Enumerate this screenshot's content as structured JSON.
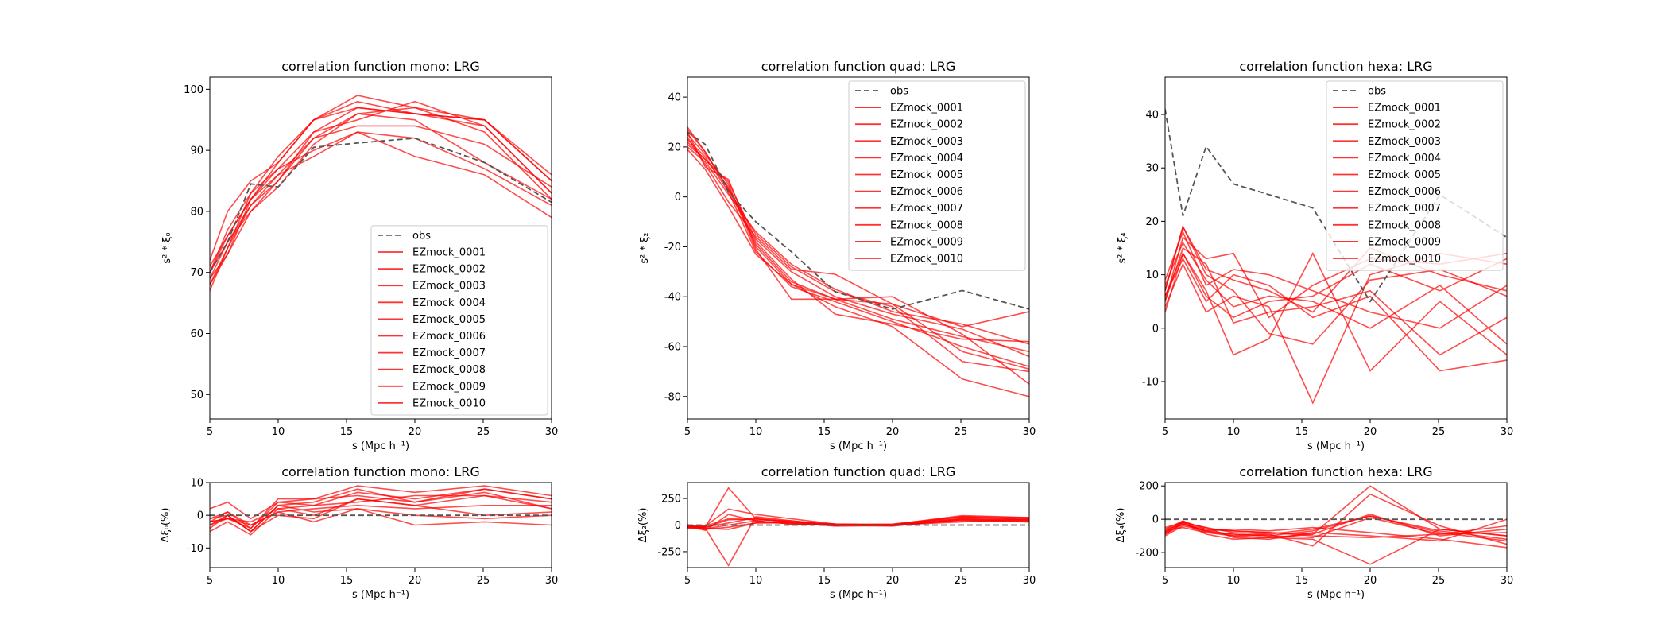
{
  "colors": {
    "obs": "#555555",
    "mock": "#ff0000",
    "legend_border": "#cccccc",
    "axes": "#000000"
  },
  "legend": {
    "obs_label": "obs",
    "mock_labels": [
      "EZmock_0001",
      "EZmock_0002",
      "EZmock_0003",
      "EZmock_0004",
      "EZmock_0005",
      "EZmock_0006",
      "EZmock_0007",
      "EZmock_0008",
      "EZmock_0009",
      "EZmock_0010"
    ]
  },
  "chart_data": [
    {
      "type": "line",
      "title": "correlation function mono: LRG",
      "xlabel": "s (Mpc h⁻¹)",
      "ylabel": "s² * ξ₀",
      "xlim": [
        5,
        30
      ],
      "ylim": [
        46,
        102
      ],
      "xticks": [
        5,
        10,
        15,
        20,
        25,
        30
      ],
      "yticks": [
        50,
        60,
        70,
        80,
        90,
        100
      ],
      "legend_position": "lower-right",
      "x": [
        5,
        6.3,
        8,
        10,
        12.6,
        15.8,
        20,
        25.1,
        30
      ],
      "obs": [
        70,
        75,
        84.5,
        84,
        90.5,
        91.2,
        92,
        88,
        81.5
      ],
      "mocks": [
        [
          70,
          77,
          83,
          87,
          93,
          97,
          96,
          95,
          85
        ],
        [
          68,
          73,
          82,
          88,
          95,
          98,
          96,
          94,
          83
        ],
        [
          72,
          80,
          85,
          88,
          95,
          99,
          97,
          93,
          82
        ],
        [
          67,
          74,
          81,
          86,
          92,
          96,
          97,
          95,
          86
        ],
        [
          69,
          75,
          80,
          85,
          92,
          94,
          94,
          91,
          84
        ],
        [
          71,
          76,
          82,
          87,
          90,
          93,
          89,
          86,
          79
        ],
        [
          68,
          74,
          83,
          89,
          95,
          97,
          96,
          95,
          85
        ],
        [
          70,
          75,
          81,
          85,
          93,
          95,
          98,
          94,
          83
        ],
        [
          69,
          73,
          80,
          84,
          91,
          96,
          95,
          88,
          82
        ],
        [
          70,
          76,
          82,
          86,
          89,
          93,
          92,
          87,
          81
        ]
      ]
    },
    {
      "type": "line",
      "title": "correlation function quad: LRG",
      "xlabel": "s (Mpc h⁻¹)",
      "ylabel": "s² * ξ₂",
      "xlim": [
        5,
        30
      ],
      "ylim": [
        -89,
        48
      ],
      "xticks": [
        5,
        10,
        15,
        20,
        25,
        30
      ],
      "yticks": [
        -80,
        -60,
        -40,
        -20,
        0,
        20,
        40
      ],
      "legend_position": "upper-right",
      "x": [
        5,
        6.3,
        8,
        10,
        12.6,
        15.8,
        20,
        25.1,
        30
      ],
      "obs": [
        26,
        21,
        2,
        -10,
        -22,
        -38,
        -45,
        -37.5,
        -45
      ],
      "mocks": [
        [
          22,
          15,
          6,
          -17,
          -30,
          -40,
          -47,
          -53,
          -64
        ],
        [
          28,
          18,
          3,
          -19,
          -34,
          -41,
          -49,
          -56,
          -62
        ],
        [
          20,
          14,
          1,
          -14,
          -27,
          -37,
          -46,
          -51,
          -59
        ],
        [
          25,
          17,
          5,
          -21,
          -41,
          -41,
          -43,
          -52,
          -46
        ],
        [
          24,
          13,
          -2,
          -16,
          -29,
          -31,
          -43,
          -62,
          -69
        ],
        [
          21,
          15,
          4,
          -18,
          -33,
          -47,
          -51,
          -57,
          -58
        ],
        [
          26,
          12,
          7,
          -20,
          -35,
          -41,
          -40,
          -55,
          -75
        ],
        [
          23,
          16,
          2,
          -22,
          -36,
          -42,
          -50,
          -60,
          -68
        ],
        [
          27,
          18,
          3,
          -15,
          -28,
          -38,
          -44,
          -66,
          -70
        ],
        [
          19,
          11,
          -4,
          -23,
          -35,
          -44,
          -52,
          -73,
          -80
        ]
      ]
    },
    {
      "type": "line",
      "title": "correlation function hexa: LRG",
      "xlabel": "s (Mpc h⁻¹)",
      "ylabel": "s² * ξ₄",
      "xlim": [
        5,
        30
      ],
      "ylim": [
        -17,
        47
      ],
      "xticks": [
        5,
        10,
        15,
        20,
        25,
        30
      ],
      "yticks": [
        -10,
        0,
        10,
        20,
        30,
        40
      ],
      "legend_position": "upper-right",
      "x": [
        5,
        6.3,
        8,
        10,
        12.6,
        15.8,
        20,
        25.1,
        30
      ],
      "obs": [
        41,
        21,
        34,
        27,
        25,
        22.5,
        5,
        25,
        17
      ],
      "mocks": [
        [
          7,
          19,
          11,
          9,
          7,
          3,
          15,
          10,
          7
        ],
        [
          5,
          17,
          13,
          14,
          2,
          8,
          13,
          12,
          14
        ],
        [
          3,
          14,
          7,
          -5,
          -2,
          14,
          -8,
          5,
          -5
        ],
        [
          8,
          16,
          9,
          4,
          6,
          5,
          0,
          8,
          -3
        ],
        [
          6,
          13,
          5,
          10,
          8,
          2,
          6,
          -8,
          -6
        ],
        [
          4,
          12,
          3,
          6,
          4,
          -14,
          10,
          14,
          12
        ],
        [
          9,
          18,
          8,
          11,
          10,
          7,
          3,
          0,
          8
        ],
        [
          5,
          15,
          12,
          1,
          3,
          4,
          7,
          -5,
          2
        ],
        [
          7,
          19,
          10,
          7,
          -1,
          -3,
          9,
          11,
          6
        ],
        [
          6,
          14,
          6,
          2,
          5,
          6,
          12,
          7,
          13
        ]
      ]
    },
    {
      "type": "line",
      "title": "correlation function mono: LRG",
      "xlabel": "s (Mpc h⁻¹)",
      "ylabel": "Δξ₀(%)",
      "xlim": [
        5,
        30
      ],
      "ylim": [
        -16,
        10
      ],
      "xticks": [
        5,
        10,
        15,
        20,
        25,
        30
      ],
      "yticks": [
        -10,
        0,
        10
      ],
      "x": [
        5,
        6.3,
        8,
        10,
        12.6,
        15.8,
        20,
        25.1,
        30
      ],
      "obs": [
        0,
        0,
        0,
        0,
        0,
        0,
        0,
        0,
        0
      ],
      "mocks": [
        [
          2,
          4,
          -1,
          4,
          3,
          7,
          5,
          8,
          5
        ],
        [
          -3,
          0,
          -5,
          3,
          4,
          8,
          4,
          7,
          2
        ],
        [
          -2,
          -1,
          -4,
          4,
          5,
          9,
          7,
          9,
          6
        ],
        [
          -5,
          -2,
          -6,
          2,
          0,
          5,
          3,
          6,
          4
        ],
        [
          -1,
          1,
          -3,
          1,
          2,
          3,
          2,
          3,
          3
        ],
        [
          -4,
          0,
          -5,
          3,
          1,
          2,
          -3,
          -2,
          -3
        ],
        [
          -2,
          1,
          -4,
          5,
          5,
          6,
          4,
          8,
          5
        ],
        [
          -3,
          -1,
          -2,
          2,
          3,
          4,
          6,
          6,
          2
        ],
        [
          -1,
          0,
          -5,
          0,
          -1,
          5,
          3,
          0,
          1
        ],
        [
          -2,
          -1,
          -3,
          1,
          -2,
          2,
          0,
          -1,
          0
        ]
      ]
    },
    {
      "type": "line",
      "title": "correlation function quad: LRG",
      "xlabel": "s (Mpc h⁻¹)",
      "ylabel": "Δξ₂(%)",
      "xlim": [
        5,
        30
      ],
      "ylim": [
        -400,
        400
      ],
      "xticks": [
        5,
        10,
        15,
        20,
        25,
        30
      ],
      "yticks": [
        -250,
        0,
        250
      ],
      "x": [
        5,
        6.3,
        8,
        10,
        12.6,
        15.8,
        20,
        25.1,
        30
      ],
      "obs": [
        0,
        0,
        0,
        0,
        0,
        0,
        0,
        0,
        0
      ],
      "mocks": [
        [
          -10,
          -20,
          350,
          60,
          30,
          10,
          5,
          60,
          50
        ],
        [
          -20,
          -30,
          -380,
          80,
          40,
          0,
          0,
          80,
          70
        ],
        [
          0,
          -10,
          150,
          100,
          60,
          10,
          0,
          40,
          30
        ],
        [
          -30,
          -40,
          -20,
          20,
          20,
          -10,
          -5,
          50,
          40
        ],
        [
          -5,
          -50,
          100,
          40,
          10,
          0,
          0,
          70,
          60
        ],
        [
          -15,
          -25,
          50,
          60,
          20,
          5,
          10,
          80,
          50
        ],
        [
          -10,
          -30,
          -40,
          20,
          30,
          10,
          0,
          30,
          60
        ],
        [
          -20,
          -10,
          60,
          50,
          40,
          0,
          -10,
          60,
          40
        ],
        [
          -5,
          -20,
          20,
          70,
          30,
          -5,
          5,
          90,
          70
        ],
        [
          -25,
          -35,
          0,
          40,
          10,
          0,
          0,
          50,
          30
        ]
      ]
    },
    {
      "type": "line",
      "title": "correlation function hexa: LRG",
      "xlabel": "s (Mpc h⁻¹)",
      "ylabel": "Δξ₄(%)",
      "xlim": [
        5,
        30
      ],
      "ylim": [
        -290,
        220
      ],
      "xticks": [
        5,
        10,
        15,
        20,
        25,
        30
      ],
      "yticks": [
        -200,
        0,
        200
      ],
      "x": [
        5,
        6.3,
        8,
        10,
        12.6,
        15.8,
        20,
        25.1,
        30
      ],
      "obs": [
        0,
        0,
        0,
        0,
        0,
        0,
        0,
        0,
        0
      ],
      "mocks": [
        [
          -80,
          -10,
          -60,
          -70,
          -80,
          -90,
          200,
          -60,
          -100
        ],
        [
          -90,
          -30,
          -70,
          -100,
          -110,
          -120,
          -270,
          -60,
          -100
        ],
        [
          -70,
          -20,
          -50,
          -80,
          -90,
          -160,
          150,
          -40,
          -150
        ],
        [
          -60,
          -10,
          -80,
          -90,
          -100,
          -70,
          20,
          -80,
          -130
        ],
        [
          -100,
          -40,
          -70,
          -60,
          -70,
          -50,
          -80,
          -120,
          -170
        ],
        [
          -50,
          -20,
          -90,
          -120,
          -110,
          -90,
          30,
          -100,
          -60
        ],
        [
          -80,
          -30,
          -60,
          -70,
          -80,
          -100,
          -110,
          -90,
          -40
        ],
        [
          -70,
          -50,
          -80,
          -100,
          -90,
          -60,
          20,
          -70,
          -120
        ],
        [
          -90,
          -20,
          -50,
          -110,
          -120,
          -80,
          -100,
          -130,
          0
        ],
        [
          -60,
          -30,
          -70,
          -90,
          -100,
          -110,
          10,
          -90,
          -80
        ]
      ]
    }
  ]
}
